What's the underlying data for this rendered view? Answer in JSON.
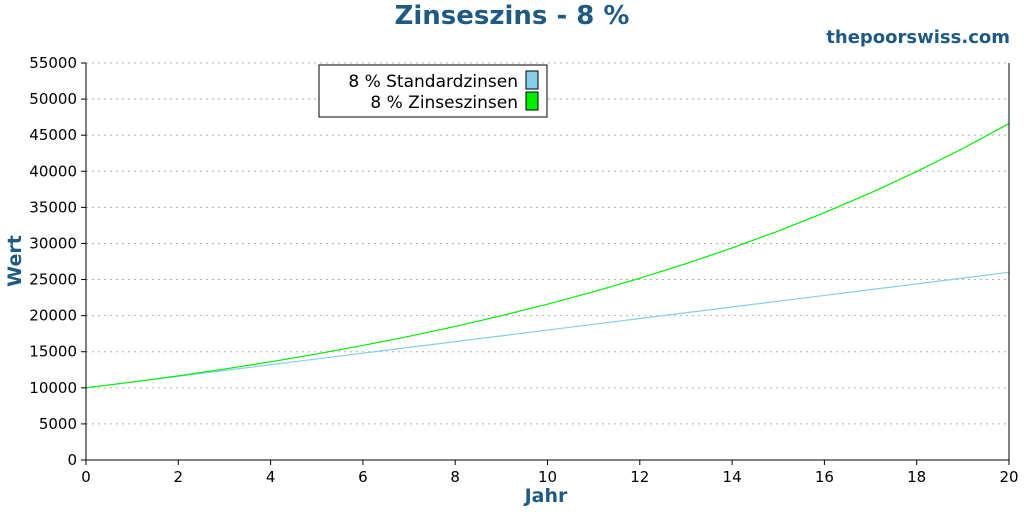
{
  "header": {
    "title": "Zinseszins - 8 %",
    "brand": "thepoorswiss.com"
  },
  "colors": {
    "title": "#1f5a84",
    "simple": "#87ceeb",
    "compound": "#00ee00",
    "grid": "#b0b0b0"
  },
  "chart_data": {
    "type": "line",
    "title": "Zinseszins - 8 %",
    "xlabel": "Jahr",
    "ylabel": "Wert",
    "xlim": [
      0,
      20
    ],
    "ylim": [
      0,
      55000
    ],
    "xticks": [
      0,
      2,
      4,
      6,
      8,
      10,
      12,
      14,
      16,
      18,
      20
    ],
    "yticks": [
      0,
      5000,
      10000,
      15000,
      20000,
      25000,
      30000,
      35000,
      40000,
      45000,
      50000,
      55000
    ],
    "grid": "horizontal-dotted",
    "legend_position": "top-left",
    "x": [
      0,
      1,
      2,
      3,
      4,
      5,
      6,
      7,
      8,
      9,
      10,
      11,
      12,
      13,
      14,
      15,
      16,
      17,
      18,
      19,
      20
    ],
    "series": [
      {
        "name": "8 % Standardzinsen",
        "color": "#87ceeb",
        "values": [
          10000,
          10800,
          11600,
          12400,
          13200,
          14000,
          14800,
          15600,
          16400,
          17200,
          18000,
          18800,
          19600,
          20400,
          21200,
          22000,
          22800,
          23600,
          24400,
          25200,
          26000
        ]
      },
      {
        "name": "8 % Zinseszinsen",
        "color": "#00ee00",
        "values": [
          10000,
          10800,
          11664,
          12597,
          13605,
          14693,
          15869,
          17138,
          18509,
          19990,
          21589,
          23316,
          25182,
          27196,
          29372,
          31722,
          34259,
          37000,
          39960,
          43157,
          46610
        ]
      }
    ]
  }
}
